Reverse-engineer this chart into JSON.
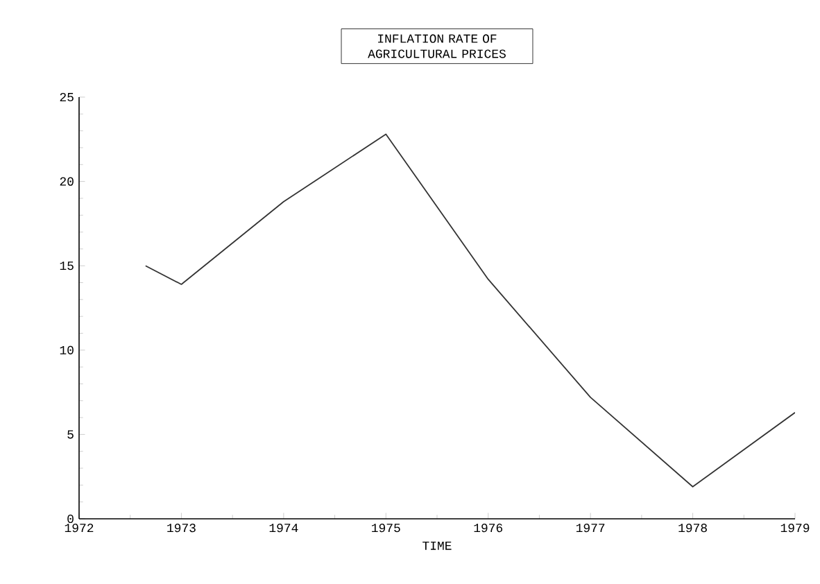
{
  "chart_data": {
    "type": "line",
    "title": "INFLATION RATE OF AGRICULTURAL PRICES",
    "xlabel": "TIME",
    "x": [
      1972.65,
      1973,
      1974,
      1975,
      1976,
      1977,
      1978,
      1979
    ],
    "series": [
      {
        "color": "#333333",
        "values": [
          15,
          13.9,
          18.8,
          22.8,
          14.2,
          7.2,
          1.9,
          6.3
        ]
      }
    ],
    "xlim": [
      1972,
      1979
    ],
    "xticks": [
      1972,
      1973,
      1974,
      1975,
      1976,
      1977,
      1978,
      1979
    ],
    "ylim": [
      0,
      25
    ],
    "yticks": [
      0,
      5,
      10,
      15,
      20,
      25
    ],
    "grid": false,
    "marker": "none",
    "line_style": "solid"
  }
}
